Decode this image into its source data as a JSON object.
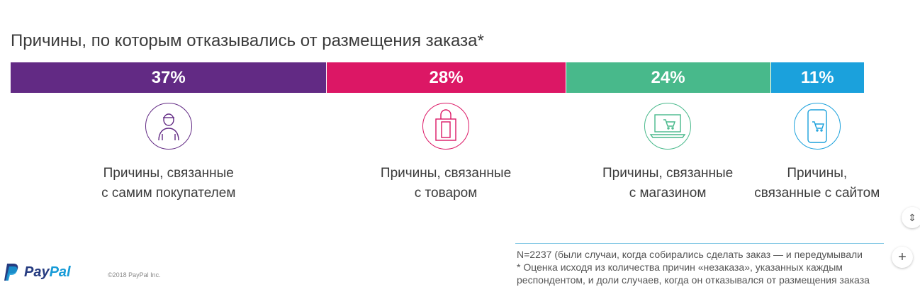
{
  "title": "Причины, по которым отказывались от размещения заказа*",
  "chart_data": {
    "type": "bar",
    "orientation": "horizontal-stacked",
    "unit": "%",
    "segments": [
      {
        "label": "37%",
        "value": 37,
        "color": "#622a84",
        "category": "Причины, связанные\nс самим покупателем",
        "icon": "person-icon"
      },
      {
        "label": "28%",
        "value": 28,
        "color": "#dc1765",
        "category": "Причины, связанные\nс товаром",
        "icon": "shopping-bag-icon"
      },
      {
        "label": "24%",
        "value": 24,
        "color": "#48b98b",
        "category": "Причины, связанные\nс магазином",
        "icon": "laptop-cart-icon"
      },
      {
        "label": "11%",
        "value": 11,
        "color": "#1ba1dc",
        "category": "Причины,\nсвязанные с сайтом",
        "icon": "phone-cart-icon"
      }
    ]
  },
  "footnotes": [
    "N=2237 (были случаи, когда собирались сделать заказ — и передумывали",
    "* Оценка исходя из количества причин «незаказа», указанных каждым",
    "респондентом, и доли случаев, когда он отказывался от размещения заказа"
  ],
  "logo": {
    "pay": "Pay",
    "pal": "Pal"
  },
  "copyright": "©2018 PayPal Inc.",
  "controls": {
    "zoom_in": "+",
    "expand": "⇕"
  }
}
